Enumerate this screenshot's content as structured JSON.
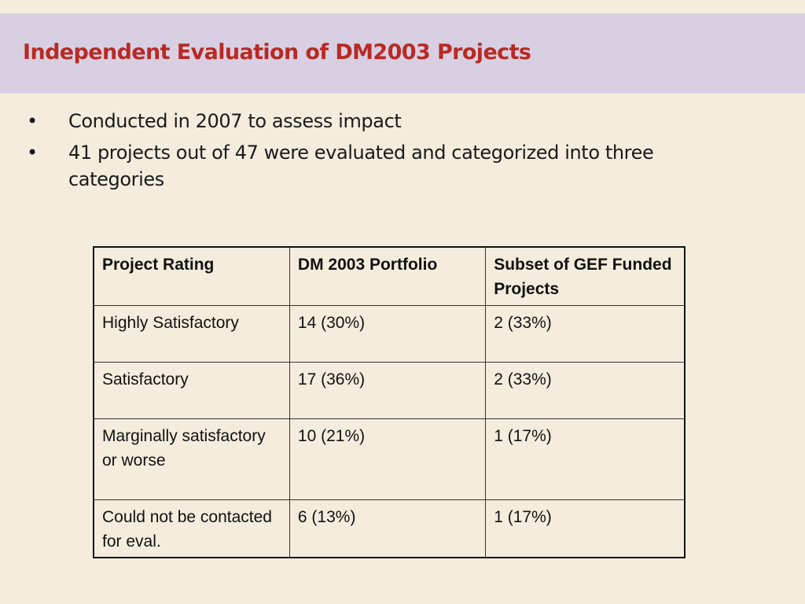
{
  "slide": {
    "title": "Independent Evaluation of DM2003 Projects",
    "bullets": [
      "Conducted in 2007 to assess impact",
      "41 projects out of 47 were evaluated and categorized into three categories"
    ],
    "bullet_glyph": "•"
  },
  "table": {
    "headers": [
      "Project Rating",
      "DM 2003 Portfolio",
      "Subset of GEF Funded Projects"
    ],
    "rows": [
      [
        "Highly Satisfactory",
        "14 (30%)",
        "2 (33%)"
      ],
      [
        "Satisfactory",
        "17 (36%)",
        "2 (33%)"
      ],
      [
        "Marginally satisfactory or worse",
        "10 (21%)",
        "1 (17%)"
      ],
      [
        "Could not be contacted for eval.",
        "6 (13%)",
        "1 (17%)"
      ]
    ]
  },
  "colors": {
    "background": "#f4ecdd",
    "title_band": "#d8d0e2",
    "title_text": "#b82a25"
  }
}
